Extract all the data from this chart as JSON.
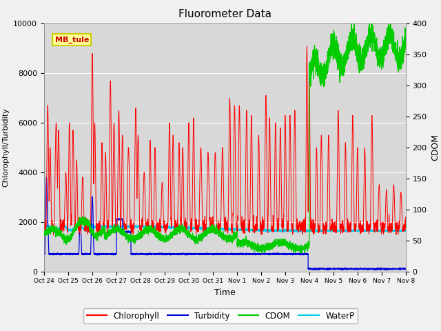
{
  "title": "Fluorometer Data",
  "xlabel": "Time",
  "ylabel_left": "Chlorophyll/Turbidity",
  "ylabel_right": "CDOM",
  "ylim_left": [
    0,
    10000
  ],
  "ylim_right": [
    0,
    400
  ],
  "annotation_text": "MB_tule",
  "legend_entries": [
    "Chlorophyll",
    "Turbidity",
    "CDOM",
    "WaterP"
  ],
  "colors": {
    "chlorophyll": "#ff0000",
    "turbidity": "#0000dd",
    "cdom": "#00cc00",
    "waterp": "#00ccee"
  },
  "plot_bg_color": "#d8d8d8",
  "fig_bg_color": "#f0f0f0",
  "grid_color": "#ffffff",
  "x_tick_labels": [
    "Oct 24",
    "Oct 25",
    "Oct 26",
    "Oct 27",
    "Oct 28",
    "Oct 29",
    "Oct 30",
    "Oct 31",
    "Nov 1",
    "Nov 2",
    "Nov 3",
    "Nov 4",
    "Nov 5",
    "Nov 6",
    "Nov 7",
    "Nov 8"
  ],
  "annotation_facecolor": "#ffff99",
  "annotation_edgecolor": "#cccc00",
  "annotation_textcolor": "#cc0000"
}
